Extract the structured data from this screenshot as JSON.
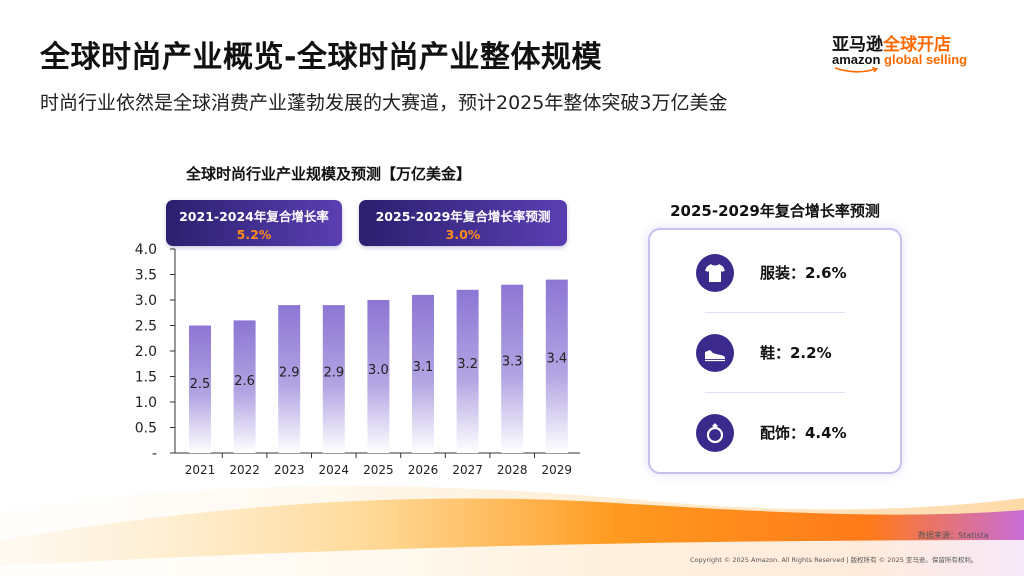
{
  "header": {
    "title": "全球时尚产业概览-全球时尚产业整体规模",
    "subtitle": "时尚行业依然是全球消费产业蓬勃发展的大赛道，预计2025年整体突破3万亿美金"
  },
  "logo": {
    "cn_part1": "亚马逊",
    "cn_part2": "全球开店",
    "en_part1": "amazon",
    "en_part2": "global selling"
  },
  "badges": {
    "left": {
      "label": "2021-2024年复合增长率",
      "value": "5.2%"
    },
    "right": {
      "label": "2025-2029年复合增长率预测",
      "value": "3.0%"
    }
  },
  "growth_panel": {
    "title": "2025-2029年复合增长率预测",
    "items": [
      {
        "icon": "tshirt-icon",
        "text": "服装：2.6%"
      },
      {
        "icon": "shoe-icon",
        "text": "鞋：2.2%"
      },
      {
        "icon": "ring-icon",
        "text": "配饰：4.4%"
      }
    ]
  },
  "footer": {
    "source": "数据来源：Statista",
    "copyright": "Copyright © 2025 Amazon. All Rights Reserved  |  版权所有 © 2025 亚马逊。保留所有权利。"
  },
  "colors": {
    "accent": "#ff6a00",
    "bar": "#8c76d4",
    "badge": "#3b2a8c"
  },
  "chart_data": {
    "type": "bar",
    "title": "全球时尚行业产业规模及预测【万亿美金】",
    "categories": [
      "2021",
      "2022",
      "2023",
      "2024",
      "2025",
      "2026",
      "2027",
      "2028",
      "2029"
    ],
    "values": [
      2.5,
      2.6,
      2.9,
      2.9,
      3.0,
      3.1,
      3.2,
      3.3,
      3.4
    ],
    "data_labels": [
      "2.5",
      "2.6",
      "2.9",
      "2.9",
      "3.0",
      "3.1",
      "3.2",
      "3.3",
      "3.4"
    ],
    "y_ticks": [
      "4.0",
      "3.5",
      "3.0",
      "2.5",
      "2.0",
      "1.5",
      "1.0",
      "0.5",
      "-"
    ],
    "ylim": [
      0,
      4.0
    ],
    "xlabel": "",
    "ylabel": "",
    "grid": false
  }
}
